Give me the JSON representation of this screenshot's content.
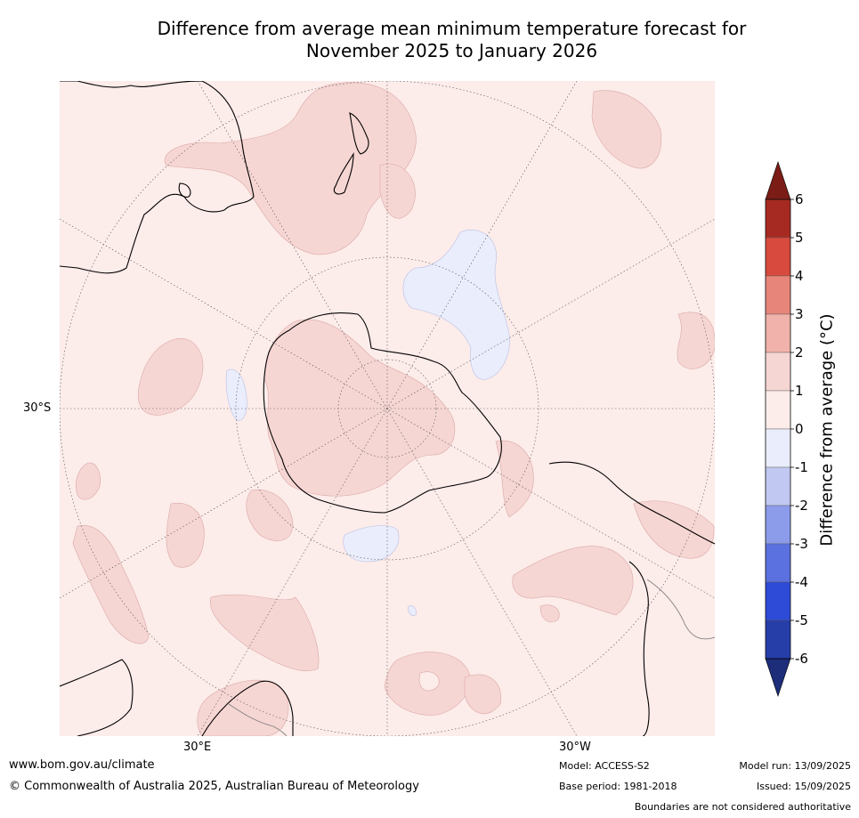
{
  "title": {
    "line1": "Difference from average mean minimum temperature forecast for",
    "line2": "November 2025 to January 2026"
  },
  "axis_labels": {
    "lat_left": "30°S",
    "lon_bottom_left": "30°E",
    "lon_bottom_right": "30°W"
  },
  "colorbar": {
    "label": "Difference from average (°C)",
    "ticks": [
      "6",
      "5",
      "4",
      "3",
      "2",
      "1",
      "0",
      "-1",
      "-2",
      "-3",
      "-4",
      "-5",
      "-6"
    ],
    "colors_top_to_bottom": [
      "#7b1d16",
      "#a62a22",
      "#d84a3e",
      "#e8857a",
      "#f0b2aa",
      "#f6d6d3",
      "#fcecea",
      "#eaedfb",
      "#c1c9f2",
      "#8c9cea",
      "#5b71e0",
      "#2e4bd8",
      "#263ea8",
      "#1d2d7a"
    ]
  },
  "map": {
    "background_color": "#fcecea",
    "warm_anomaly_color": "#f6d6d3",
    "cool_anomaly_color": "#eaedfb"
  },
  "footer": {
    "website": "www.bom.gov.au/climate",
    "copyright": "© Commonwealth of Australia 2025, Australian Bureau of Meteorology",
    "model": "Model: ACCESS-S2",
    "base_period": "Base period: 1981-2018",
    "model_run": "Model run: 13/09/2025",
    "issued": "Issued: 15/09/2025",
    "disclaimer": "Boundaries are not considered authoritative"
  }
}
